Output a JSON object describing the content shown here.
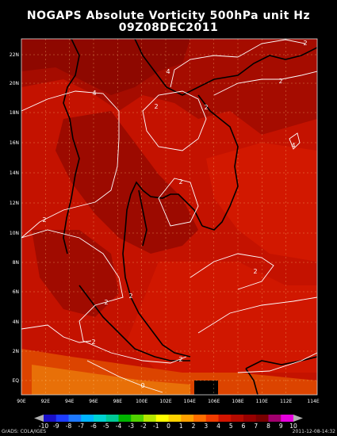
{
  "header": {
    "title_line1": "NOGAPS Absolute Vorticity 500hPa unit Hz",
    "title_line2": "09Z08DEC2011"
  },
  "map": {
    "lon_labels": [
      "90E",
      "92E",
      "94E",
      "96E",
      "98E",
      "100E",
      "102E",
      "104E",
      "106E",
      "108E",
      "110E",
      "112E",
      "114E"
    ],
    "lat_labels": [
      "22N",
      "20N",
      "18N",
      "16N",
      "14N",
      "12N",
      "10N",
      "8N",
      "6N",
      "4N",
      "2N",
      "EQ"
    ],
    "contour_labels": [
      "2",
      "4",
      "2",
      "2",
      "4",
      "2",
      "4",
      "2",
      "2",
      "2",
      "2",
      "2",
      "2",
      "2",
      "0"
    ],
    "colors": {
      "land_bg": "#c81400",
      "deep": "#8c0800",
      "dark": "#a50c00",
      "mid": "#d71a00",
      "orange": "#e04c00",
      "amber": "#e8720a",
      "coast": "#000000",
      "contour": "#ffffff",
      "grid": "#ffd080"
    }
  },
  "colorbar": {
    "labels": [
      "-10",
      "-9",
      "-8",
      "-7",
      "-6",
      "-5",
      "-4",
      "-3",
      "-2",
      "-1",
      "0",
      "1",
      "2",
      "3",
      "4",
      "5",
      "6",
      "7",
      "8",
      "9",
      "10"
    ],
    "colors": [
      "#1a10c8",
      "#1e3cff",
      "#1e78ff",
      "#00b4ff",
      "#00d2d2",
      "#00c896",
      "#00b400",
      "#50d200",
      "#b4e600",
      "#ffff00",
      "#ffd200",
      "#ffa000",
      "#ff6e00",
      "#f03c00",
      "#d21400",
      "#b40a00",
      "#960000",
      "#780000",
      "#a0006e",
      "#e600dc"
    ]
  },
  "footer": {
    "left": "GrADS: COLA/IGES",
    "right": "2011-12-08-14:32"
  }
}
